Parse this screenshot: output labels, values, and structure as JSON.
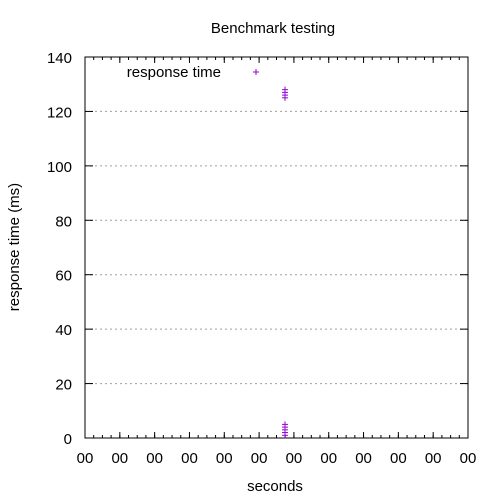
{
  "chart_data": {
    "type": "scatter",
    "title": "Benchmark testing",
    "xlabel": "seconds",
    "ylabel": "response time (ms)",
    "ylim": [
      0,
      140
    ],
    "y_ticks": [
      0,
      20,
      40,
      60,
      80,
      100,
      120,
      140
    ],
    "x_tick_labels": [
      "00",
      "00",
      "00",
      "00",
      "00",
      "00",
      "00",
      "00",
      "00",
      "00",
      "00",
      "00"
    ],
    "grid": "horizontal dotted",
    "legend_position": "top-left",
    "series": [
      {
        "name": "response time",
        "marker": "+",
        "color": "#9400d3",
        "points": [
          {
            "x": 0.0,
            "y": 125
          },
          {
            "x": 0.0,
            "y": 126
          },
          {
            "x": 0.0,
            "y": 127
          },
          {
            "x": 0.0,
            "y": 128
          },
          {
            "x": 0.0,
            "y": 1
          },
          {
            "x": 0.0,
            "y": 2
          },
          {
            "x": 0.0,
            "y": 3
          },
          {
            "x": 0.0,
            "y": 4
          },
          {
            "x": 0.0,
            "y": 5
          }
        ]
      }
    ]
  },
  "colors": {
    "series": "#9400d3",
    "grid": "#a0a0a0",
    "axis": "#000000"
  }
}
